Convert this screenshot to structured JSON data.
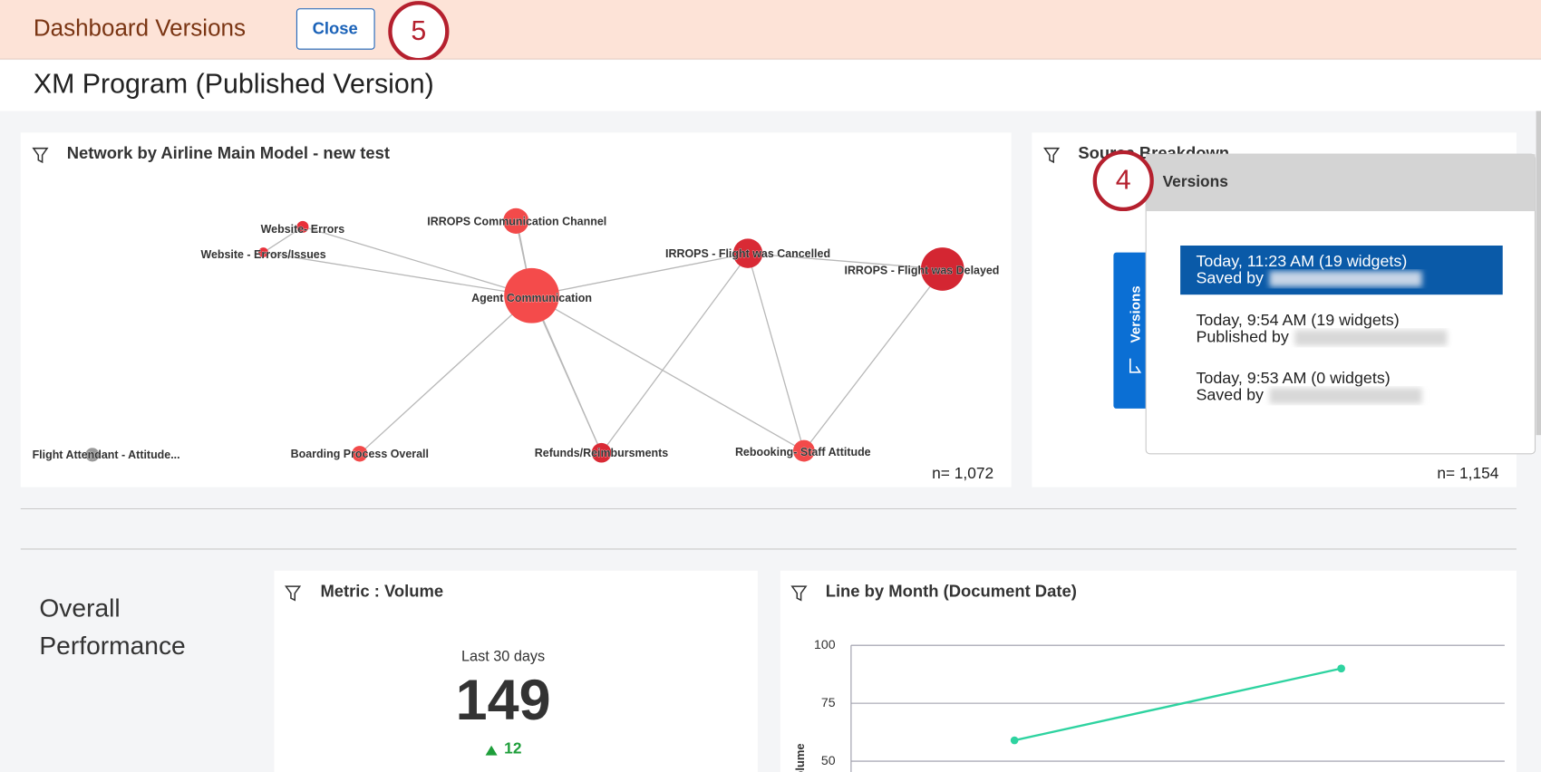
{
  "header": {
    "title": "Dashboard Versions",
    "close_button": "Close",
    "callout": "5"
  },
  "page_title": "XM Program (Published Version)",
  "network_widget": {
    "title": "Network by Airline Main Model - new test",
    "n_label": "n= 1,072",
    "nodes": [
      {
        "label": "Website- Errors"
      },
      {
        "label": "Website - Errors/Issues"
      },
      {
        "label": "IRROPS Communication Channel"
      },
      {
        "label": "Agent Communication"
      },
      {
        "label": "IRROPS - Flight was Cancelled"
      },
      {
        "label": "IRROPS - Flight was Delayed"
      },
      {
        "label": "Flight Attendant - Attitude..."
      },
      {
        "label": "Boarding Process Overall"
      },
      {
        "label": "Refunds/Reimbursments"
      },
      {
        "label": "Rebooking- Staff Attitude"
      }
    ]
  },
  "source_widget": {
    "title": "Source Breakdown",
    "n_label": "n= 1,154"
  },
  "versions_panel": {
    "title": "Versions",
    "callout": "4",
    "tab_label": "Versions",
    "items": [
      {
        "time": "Today, 11:23 AM (19 widgets)",
        "by": "Saved by"
      },
      {
        "time": "Today, 9:54 AM (19 widgets)",
        "by": "Published by"
      },
      {
        "time": "Today, 9:53 AM (0 widgets)",
        "by": "Saved by"
      }
    ]
  },
  "section_title": "Overall Performance",
  "metric_widget": {
    "title": "Metric : Volume",
    "period": "Last 30 days",
    "value": 149,
    "delta": 12
  },
  "chart_data": {
    "type": "line",
    "title": "Line by Month (Document Date)",
    "y_label": "Volume",
    "categories": [
      null,
      null
    ],
    "series": [
      {
        "name": "Volume",
        "color": "#2ed3a0",
        "values": [
          59,
          90
        ]
      }
    ],
    "ylim": [
      0,
      100
    ],
    "yticks": [
      50,
      75,
      100
    ],
    "grid": true
  }
}
